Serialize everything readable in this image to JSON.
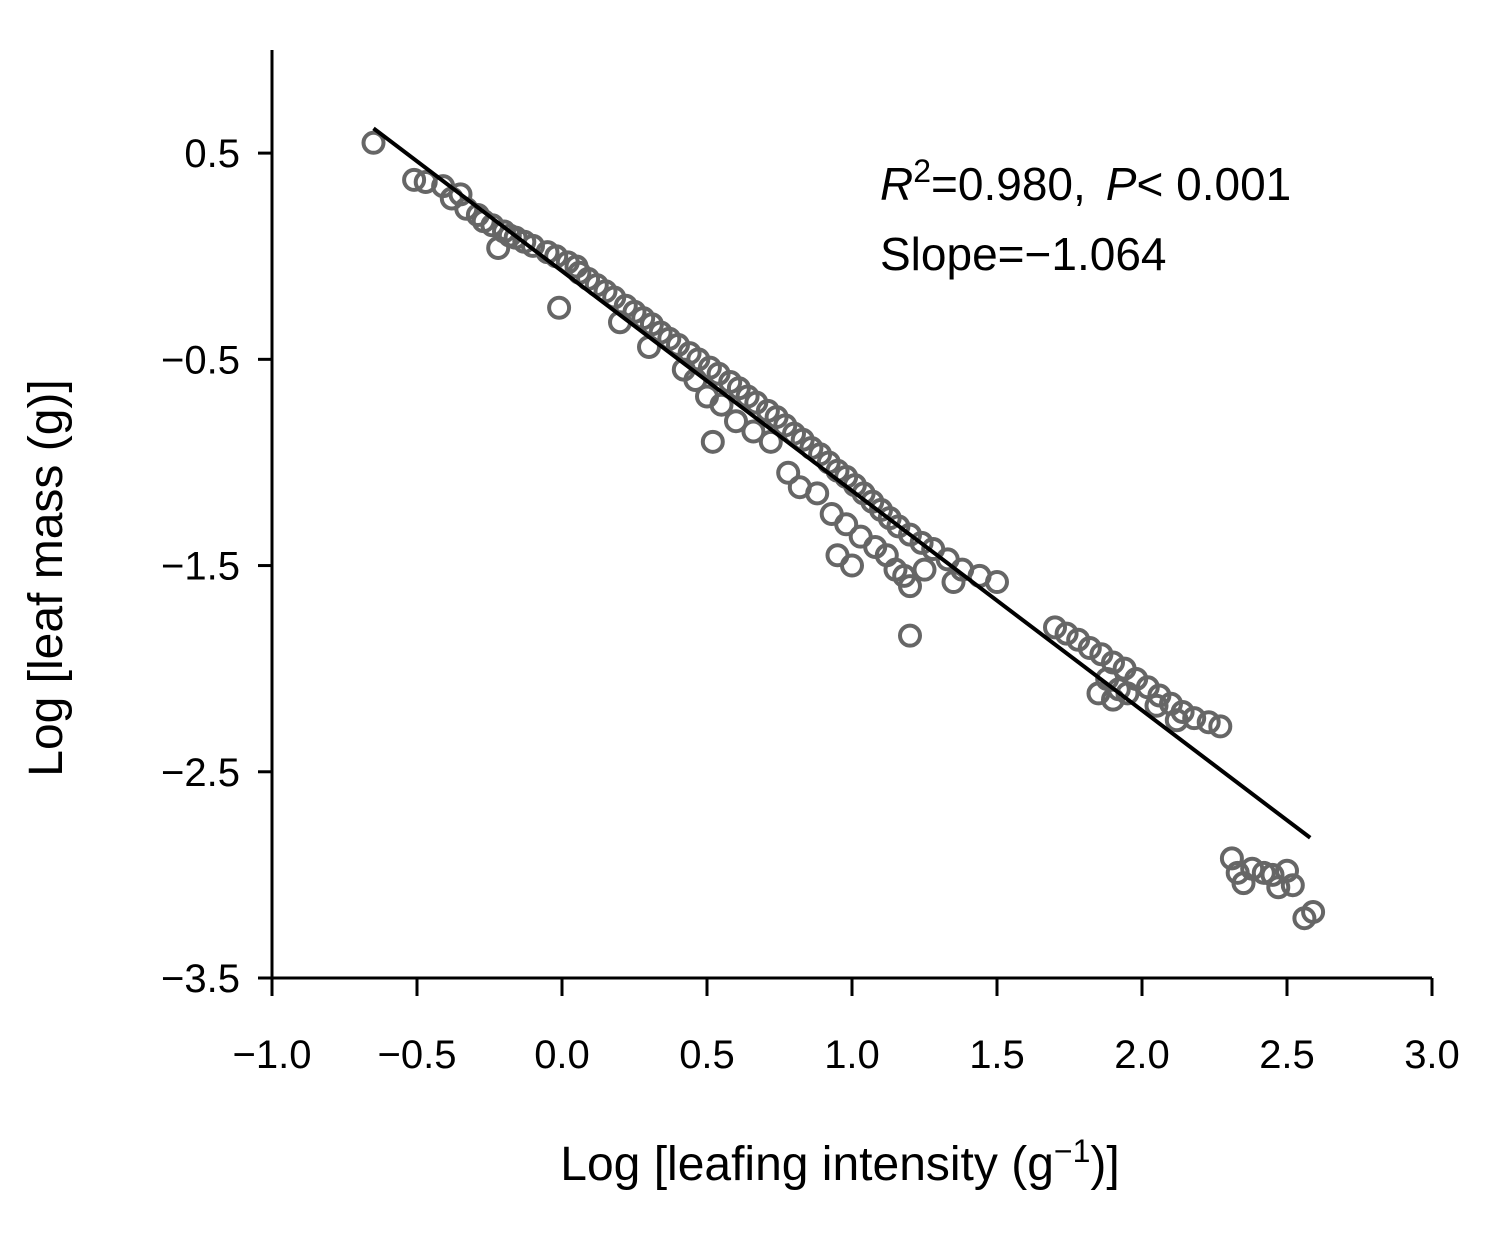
{
  "chart_data": {
    "type": "scatter",
    "title": "",
    "xlabel": {
      "main": "Log [leafing intensity (g",
      "sup": "−1",
      "end": ")]"
    },
    "ylabel": "Log [leaf mass (g)]",
    "xlim": [
      -1.0,
      3.0
    ],
    "ylim": [
      -3.5,
      1.0
    ],
    "x_ticks": [
      "−1.0",
      "−0.5",
      "0.0",
      "0.5",
      "1.0",
      "1.5",
      "2.0",
      "2.5",
      "3.0"
    ],
    "x_tick_values": [
      -1.0,
      -0.5,
      0.0,
      0.5,
      1.0,
      1.5,
      2.0,
      2.5,
      3.0
    ],
    "y_ticks": [
      "0.5",
      "−0.5",
      "−1.5",
      "−2.5",
      "−3.5"
    ],
    "y_tick_values": [
      0.5,
      -0.5,
      -1.5,
      -2.5,
      -3.5
    ],
    "grid": false,
    "marker": "open-circle",
    "marker_color": "#666666",
    "line_color": "#000000",
    "fit_line": {
      "x": [
        -0.65,
        2.58
      ],
      "y": [
        0.62,
        -2.82
      ]
    },
    "annotation": {
      "r_letter": "R",
      "r_sup": "2",
      "r_text": "=0.980,",
      "p_letter": "P",
      "p_text": "< 0.001",
      "slope": "Slope=−1.064"
    },
    "points": [
      [
        -0.65,
        0.55
      ],
      [
        -0.51,
        0.37
      ],
      [
        -0.47,
        0.36
      ],
      [
        -0.41,
        0.34
      ],
      [
        -0.35,
        0.3
      ],
      [
        -0.38,
        0.28
      ],
      [
        -0.33,
        0.23
      ],
      [
        -0.29,
        0.2
      ],
      [
        -0.27,
        0.17
      ],
      [
        -0.24,
        0.15
      ],
      [
        -0.2,
        0.12
      ],
      [
        -0.16,
        0.09
      ],
      [
        -0.22,
        0.04
      ],
      [
        -0.13,
        0.07
      ],
      [
        -0.1,
        0.05
      ],
      [
        -0.18,
        0.1
      ],
      [
        -0.05,
        0.02
      ],
      [
        -0.02,
        0.0
      ],
      [
        0.02,
        -0.03
      ],
      [
        0.05,
        -0.05
      ],
      [
        -0.01,
        -0.25
      ],
      [
        0.06,
        -0.08
      ],
      [
        0.09,
        -0.11
      ],
      [
        0.12,
        -0.14
      ],
      [
        0.15,
        -0.17
      ],
      [
        0.18,
        -0.2
      ],
      [
        0.22,
        -0.24
      ],
      [
        0.2,
        -0.32
      ],
      [
        0.25,
        -0.27
      ],
      [
        0.28,
        -0.3
      ],
      [
        0.31,
        -0.33
      ],
      [
        0.34,
        -0.37
      ],
      [
        0.3,
        -0.44
      ],
      [
        0.37,
        -0.4
      ],
      [
        0.4,
        -0.43
      ],
      [
        0.44,
        -0.47
      ],
      [
        0.47,
        -0.5
      ],
      [
        0.51,
        -0.54
      ],
      [
        0.54,
        -0.57
      ],
      [
        0.46,
        -0.6
      ],
      [
        0.42,
        -0.55
      ],
      [
        0.58,
        -0.61
      ],
      [
        0.61,
        -0.64
      ],
      [
        0.64,
        -0.68
      ],
      [
        0.67,
        -0.71
      ],
      [
        0.71,
        -0.75
      ],
      [
        0.74,
        -0.78
      ],
      [
        0.77,
        -0.82
      ],
      [
        0.8,
        -0.86
      ],
      [
        0.5,
        -0.68
      ],
      [
        0.55,
        -0.72
      ],
      [
        0.6,
        -0.8
      ],
      [
        0.66,
        -0.85
      ],
      [
        0.72,
        -0.9
      ],
      [
        0.52,
        -0.9
      ],
      [
        0.83,
        -0.89
      ],
      [
        0.86,
        -0.93
      ],
      [
        0.89,
        -0.96
      ],
      [
        0.92,
        -1.0
      ],
      [
        0.95,
        -1.04
      ],
      [
        0.78,
        -1.05
      ],
      [
        0.82,
        -1.12
      ],
      [
        0.88,
        -1.15
      ],
      [
        0.98,
        -1.07
      ],
      [
        1.01,
        -1.11
      ],
      [
        1.04,
        -1.15
      ],
      [
        1.07,
        -1.19
      ],
      [
        1.1,
        -1.23
      ],
      [
        1.13,
        -1.27
      ],
      [
        1.16,
        -1.31
      ],
      [
        0.93,
        -1.25
      ],
      [
        0.98,
        -1.3
      ],
      [
        1.03,
        -1.36
      ],
      [
        1.08,
        -1.41
      ],
      [
        1.12,
        -1.45
      ],
      [
        1.2,
        -1.35
      ],
      [
        1.24,
        -1.39
      ],
      [
        1.28,
        -1.42
      ],
      [
        1.33,
        -1.47
      ],
      [
        1.38,
        -1.52
      ],
      [
        1.44,
        -1.55
      ],
      [
        1.5,
        -1.58
      ],
      [
        1.35,
        -1.58
      ],
      [
        1.2,
        -1.6
      ],
      [
        1.0,
        -1.5
      ],
      [
        0.95,
        -1.45
      ],
      [
        1.15,
        -1.52
      ],
      [
        1.18,
        -1.55
      ],
      [
        1.25,
        -1.52
      ],
      [
        1.2,
        -1.84
      ],
      [
        1.7,
        -1.8
      ],
      [
        1.74,
        -1.83
      ],
      [
        1.78,
        -1.86
      ],
      [
        1.82,
        -1.9
      ],
      [
        1.86,
        -1.93
      ],
      [
        1.9,
        -1.97
      ],
      [
        1.94,
        -2.0
      ],
      [
        1.88,
        -2.05
      ],
      [
        1.92,
        -2.1
      ],
      [
        1.98,
        -2.05
      ],
      [
        2.02,
        -2.09
      ],
      [
        2.06,
        -2.13
      ],
      [
        2.1,
        -2.17
      ],
      [
        2.14,
        -2.21
      ],
      [
        1.85,
        -2.12
      ],
      [
        1.9,
        -2.15
      ],
      [
        1.95,
        -2.12
      ],
      [
        2.05,
        -2.18
      ],
      [
        2.12,
        -2.25
      ],
      [
        2.18,
        -2.24
      ],
      [
        2.23,
        -2.26
      ],
      [
        2.27,
        -2.28
      ],
      [
        2.31,
        -2.92
      ],
      [
        2.33,
        -2.99
      ],
      [
        2.35,
        -3.04
      ],
      [
        2.38,
        -2.97
      ],
      [
        2.42,
        -2.99
      ],
      [
        2.45,
        -3.0
      ],
      [
        2.47,
        -3.06
      ],
      [
        2.5,
        -2.98
      ],
      [
        2.52,
        -3.05
      ],
      [
        2.56,
        -3.21
      ],
      [
        2.59,
        -3.18
      ]
    ]
  }
}
